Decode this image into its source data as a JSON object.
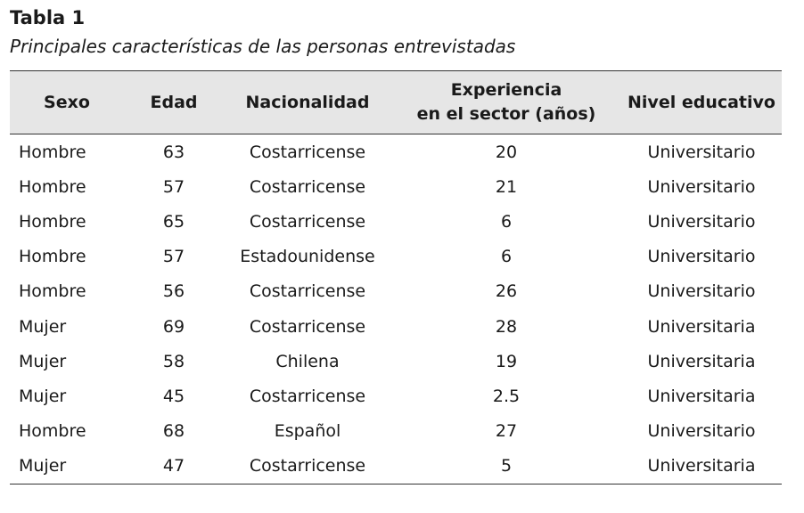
{
  "table_label": "Tabla 1",
  "table_caption": "Principales características de las personas entrevistadas",
  "headers": {
    "sexo": "Sexo",
    "edad": "Edad",
    "nacionalidad": "Nacionalidad",
    "experiencia_line1": "Experiencia",
    "experiencia_line2": "en el sector (años)",
    "nivel": "Nivel educativo"
  },
  "rows": [
    {
      "sexo": "Hombre",
      "edad": "63",
      "nacionalidad": "Costarricense",
      "experiencia": "20",
      "nivel": "Universitario"
    },
    {
      "sexo": "Hombre",
      "edad": "57",
      "nacionalidad": "Costarricense",
      "experiencia": "21",
      "nivel": "Universitario"
    },
    {
      "sexo": "Hombre",
      "edad": "65",
      "nacionalidad": "Costarricense",
      "experiencia": "6",
      "nivel": "Universitario"
    },
    {
      "sexo": "Hombre",
      "edad": "57",
      "nacionalidad": "Estadounidense",
      "experiencia": "6",
      "nivel": "Universitario"
    },
    {
      "sexo": "Hombre",
      "edad": "56",
      "nacionalidad": "Costarricense",
      "experiencia": "26",
      "nivel": "Universitario"
    },
    {
      "sexo": "Mujer",
      "edad": "69",
      "nacionalidad": "Costarricense",
      "experiencia": "28",
      "nivel": "Universitaria"
    },
    {
      "sexo": "Mujer",
      "edad": "58",
      "nacionalidad": "Chilena",
      "experiencia": "19",
      "nivel": "Universitaria"
    },
    {
      "sexo": "Mujer",
      "edad": "45",
      "nacionalidad": "Costarricense",
      "experiencia": "2.5",
      "nivel": "Universitaria"
    },
    {
      "sexo": "Hombre",
      "edad": "68",
      "nacionalidad": "Español",
      "experiencia": "27",
      "nivel": "Universitario"
    },
    {
      "sexo": "Mujer",
      "edad": "47",
      "nacionalidad": "Costarricense",
      "experiencia": "5",
      "nivel": "Universitaria"
    }
  ]
}
